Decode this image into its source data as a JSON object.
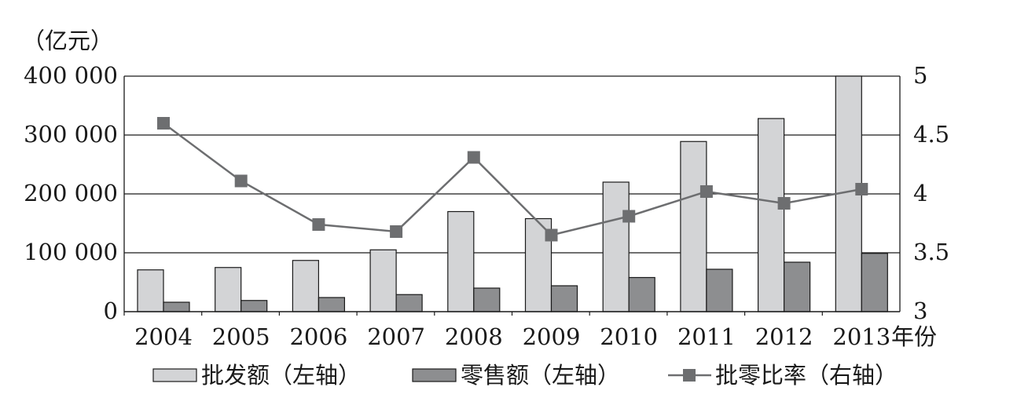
{
  "chart_data": {
    "type": "bar",
    "y_unit_label": "（亿元）",
    "x_unit_label": "年份",
    "categories": [
      "2004",
      "2005",
      "2006",
      "2007",
      "2008",
      "2009",
      "2010",
      "2011",
      "2012",
      "2013"
    ],
    "series": [
      {
        "name": "批发额（左轴）",
        "type": "bar",
        "axis": "left",
        "color": "#d3d4d6",
        "values": [
          71000,
          75000,
          87000,
          105000,
          170000,
          158000,
          220000,
          289000,
          328000,
          400000
        ]
      },
      {
        "name": "零售额（左轴）",
        "type": "bar",
        "axis": "left",
        "color": "#8d8e90",
        "values": [
          16000,
          19000,
          24000,
          29000,
          40000,
          44000,
          58000,
          72000,
          84000,
          99000
        ]
      },
      {
        "name": "批零比率（右轴）",
        "type": "line",
        "axis": "right",
        "color": "#6d6e70",
        "values": [
          4.6,
          4.11,
          3.74,
          3.68,
          4.31,
          3.65,
          3.81,
          4.02,
          3.92,
          4.04
        ]
      }
    ],
    "left_axis": {
      "ylim": [
        0,
        400000
      ],
      "ticks": [
        0,
        100000,
        200000,
        300000,
        400000
      ],
      "tick_labels": [
        "0",
        "100 000",
        "200 000",
        "300 000",
        "400 000"
      ]
    },
    "right_axis": {
      "ylim": [
        3,
        5
      ],
      "ticks": [
        3,
        3.5,
        4,
        4.5,
        5
      ],
      "tick_labels": [
        "3",
        "3.5",
        "4",
        "4.5",
        "5"
      ]
    },
    "grid": true,
    "legend_position": "bottom"
  }
}
